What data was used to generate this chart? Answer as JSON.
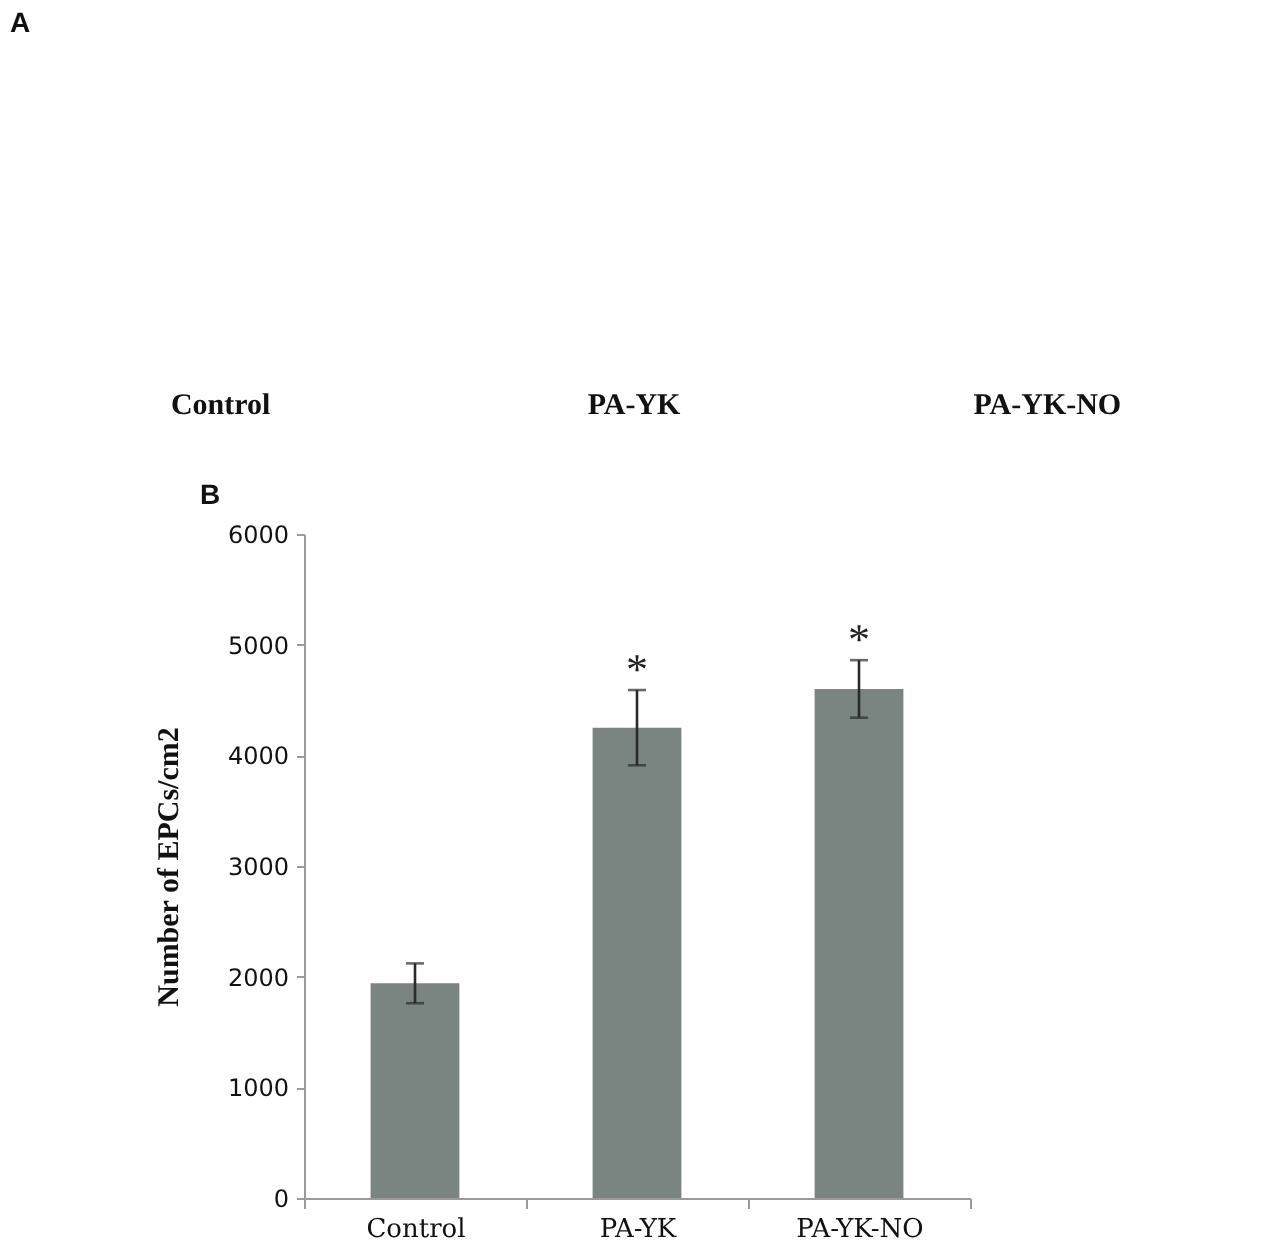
{
  "chart_data": [
    {
      "type": "other",
      "title": "A",
      "annotations": [
        "Control",
        "PA-YK",
        "PA-YK-NO"
      ]
    },
    {
      "type": "bar",
      "title": "B",
      "categories": [
        "Control",
        "PA-YK",
        "PA-YK-NO"
      ],
      "values": [
        1940,
        4250,
        4600
      ],
      "errors": [
        180,
        340,
        260
      ],
      "color": "#7a8581",
      "ylabel": "Number of EPCs/cm2",
      "ylim": [
        0,
        6000
      ],
      "yticks": [
        0,
        1000,
        2000,
        3000,
        4000,
        5000,
        6000
      ],
      "annotations": [
        {
          "text": "*",
          "x": "PA-YK",
          "y": 4590
        },
        {
          "text": "*",
          "x": "PA-YK-NO",
          "y": 4860
        }
      ]
    }
  ]
}
